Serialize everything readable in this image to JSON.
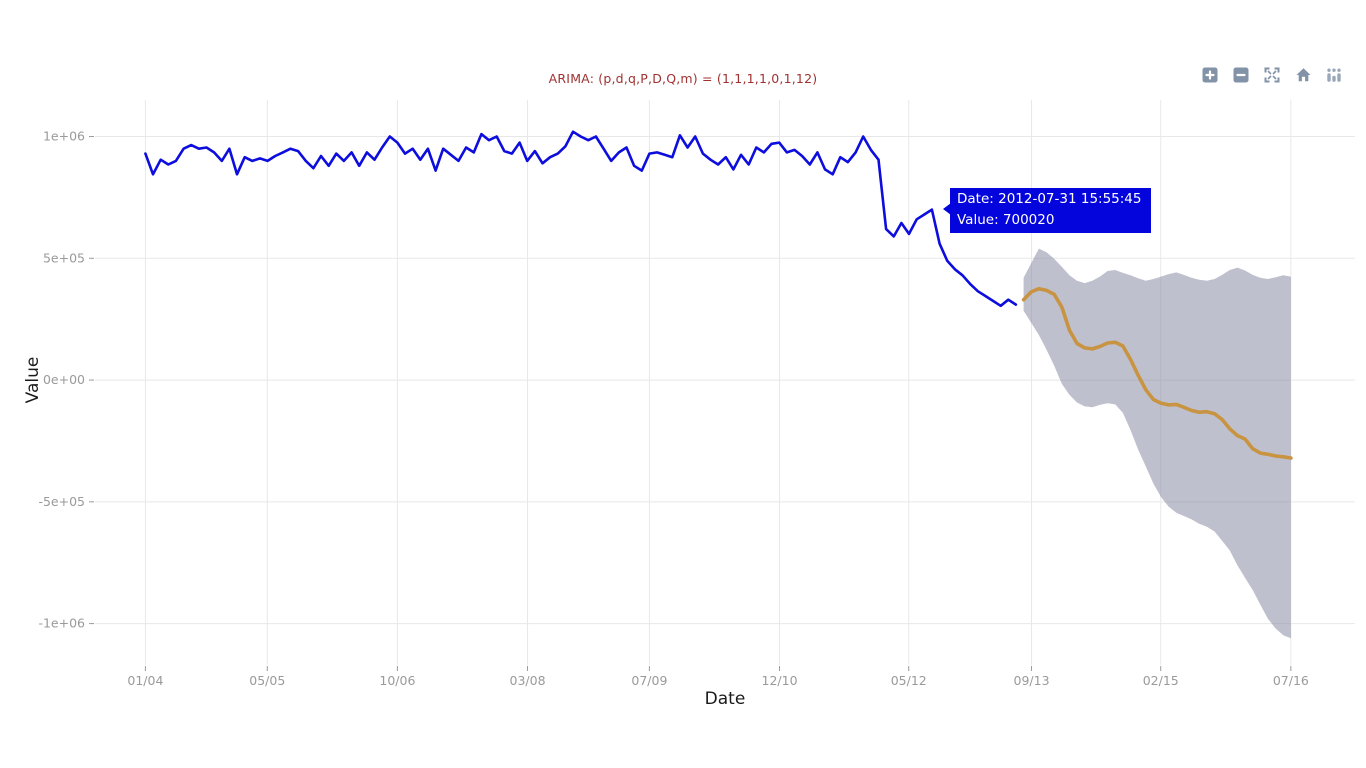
{
  "tooltip": {
    "line1": "Date: 2012-07-31 15:55:45",
    "line2": "Value: 700020",
    "bg": "#0404dd",
    "text_color": "#ffffff"
  },
  "modebar": {
    "icons": [
      "zoom-in",
      "zoom-out",
      "autoscale",
      "reset-axes-home",
      "plotly-logo"
    ],
    "color": "#8293a7"
  },
  "chart_data": {
    "type": "line",
    "title": "ARIMA: (p,d,q,P,D,Q,m) = (1,1,1,1,0,1,12)",
    "title_color": "#a03232",
    "xlabel": "Date",
    "ylabel": "Value",
    "grid": true,
    "legend": "none",
    "x_tick_labels": [
      "01/04",
      "05/05",
      "10/06",
      "03/08",
      "07/09",
      "12/10",
      "05/12",
      "09/13",
      "02/15",
      "07/16"
    ],
    "x_tick_positions": [
      2004.0,
      2005.33,
      2006.75,
      2008.17,
      2009.5,
      2010.92,
      2012.33,
      2013.67,
      2015.08,
      2016.5
    ],
    "y_tick_labels": [
      "1e+06",
      "5e+05",
      "0e+00",
      "-5e+05",
      "-1e+06"
    ],
    "y_tick_values": [
      1000000,
      500000,
      0,
      -500000,
      -1000000
    ],
    "xlim": [
      2003.45,
      2017.2
    ],
    "ylim": [
      -1170000,
      1150000
    ],
    "series": [
      {
        "name": "observed",
        "color": "#0d0ddd",
        "start_year": 2004,
        "start_month": 1,
        "values": [
          930000,
          845000,
          905000,
          885000,
          900000,
          950000,
          965000,
          950000,
          955000,
          935000,
          900000,
          950000,
          845000,
          915000,
          900000,
          910000,
          900000,
          920000,
          935000,
          950000,
          940000,
          900000,
          870000,
          920000,
          880000,
          930000,
          900000,
          935000,
          880000,
          935000,
          905000,
          955000,
          1000000,
          975000,
          930000,
          950000,
          905000,
          950000,
          860000,
          950000,
          925000,
          900000,
          955000,
          935000,
          1010000,
          985000,
          1000000,
          940000,
          930000,
          975000,
          900000,
          940000,
          890000,
          915000,
          930000,
          960000,
          1020000,
          1000000,
          985000,
          1000000,
          950000,
          900000,
          935000,
          955000,
          880000,
          860000,
          930000,
          935000,
          925000,
          915000,
          1005000,
          955000,
          1000000,
          930000,
          905000,
          885000,
          915000,
          865000,
          925000,
          885000,
          955000,
          935000,
          970000,
          975000,
          935000,
          945000,
          920000,
          885000,
          935000,
          865000,
          845000,
          915000,
          895000,
          935000,
          1000000,
          945000,
          905000,
          620000,
          590000,
          645000,
          600000,
          660000,
          680000,
          700020,
          560000,
          490000,
          455000,
          430000,
          395000,
          365000,
          345000,
          325000,
          305000,
          330000,
          310000
        ]
      },
      {
        "name": "forecast",
        "color": "#c89441",
        "start_year": 2013,
        "start_month": 8,
        "values": [
          330000,
          362000,
          375000,
          368000,
          352000,
          300000,
          205000,
          150000,
          132000,
          128000,
          138000,
          152000,
          155000,
          140000,
          85000,
          20000,
          -40000,
          -80000,
          -95000,
          -102000,
          -100000,
          -112000,
          -125000,
          -132000,
          -130000,
          -138000,
          -162000,
          -200000,
          -228000,
          -242000,
          -282000,
          -300000,
          -305000,
          -312000,
          -315000,
          -320000
        ]
      }
    ],
    "band": {
      "name": "confidence-interval",
      "color": "rgba(128,130,158,0.5)",
      "start_year": 2013,
      "start_month": 8,
      "upper": [
        420000,
        480000,
        540000,
        525000,
        498000,
        465000,
        430000,
        408000,
        398000,
        408000,
        425000,
        448000,
        452000,
        440000,
        430000,
        418000,
        408000,
        415000,
        425000,
        435000,
        442000,
        432000,
        420000,
        412000,
        408000,
        415000,
        432000,
        452000,
        462000,
        450000,
        432000,
        420000,
        415000,
        422000,
        430000,
        425000
      ],
      "lower": [
        285000,
        235000,
        185000,
        125000,
        60000,
        -15000,
        -60000,
        -92000,
        -108000,
        -112000,
        -102000,
        -95000,
        -100000,
        -135000,
        -205000,
        -285000,
        -355000,
        -425000,
        -480000,
        -520000,
        -545000,
        -558000,
        -572000,
        -590000,
        -602000,
        -622000,
        -660000,
        -700000,
        -760000,
        -812000,
        -862000,
        -922000,
        -980000,
        -1020000,
        -1048000,
        -1060000
      ]
    }
  }
}
